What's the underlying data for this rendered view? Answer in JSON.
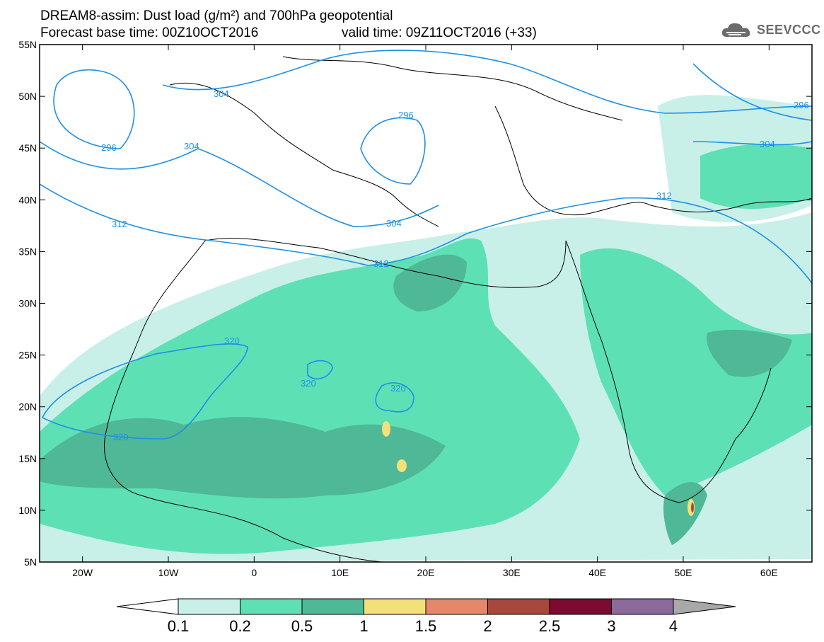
{
  "header": {
    "title_line1": "DREAM8-assim: Dust load (g/m²) and 700hPa geopotential",
    "title_line2_left": "Forecast base time: 00Z10OCT2016",
    "title_line2_right": "valid time: 09Z11OCT2016 (+33)"
  },
  "logo": {
    "text": "SEEVCCC",
    "icon": "cloud-icon"
  },
  "map": {
    "projection": "lat-lon",
    "lat_range": [
      5,
      55
    ],
    "lon_range": [
      -25,
      65
    ],
    "lat_ticks": [
      "55N",
      "50N",
      "45N",
      "40N",
      "35N",
      "30N",
      "25N",
      "20N",
      "15N",
      "10N",
      "5N"
    ],
    "lon_ticks": [
      "20W",
      "10W",
      "0",
      "10E",
      "20E",
      "30E",
      "40E",
      "50E",
      "60E"
    ],
    "contour_labels": [
      "304",
      "296",
      "296",
      "304",
      "312",
      "304",
      "312",
      "312",
      "320",
      "320",
      "320",
      "320",
      "296",
      "304"
    ]
  },
  "colorbar": {
    "labels": [
      "0.1",
      "0.2",
      "0.5",
      "1",
      "1.5",
      "2",
      "2.5",
      "3",
      "4"
    ],
    "colors": [
      "#c8f0e8",
      "#5ee0b5",
      "#4fb896",
      "#f2e079",
      "#e5876a",
      "#a6493c",
      "#7d0a2f",
      "#8c6b9c"
    ],
    "under_color": "#ffffff",
    "over_color": "#a8a8a8"
  },
  "colors": {
    "contour": "#1e90e6",
    "coast": "#000000"
  }
}
